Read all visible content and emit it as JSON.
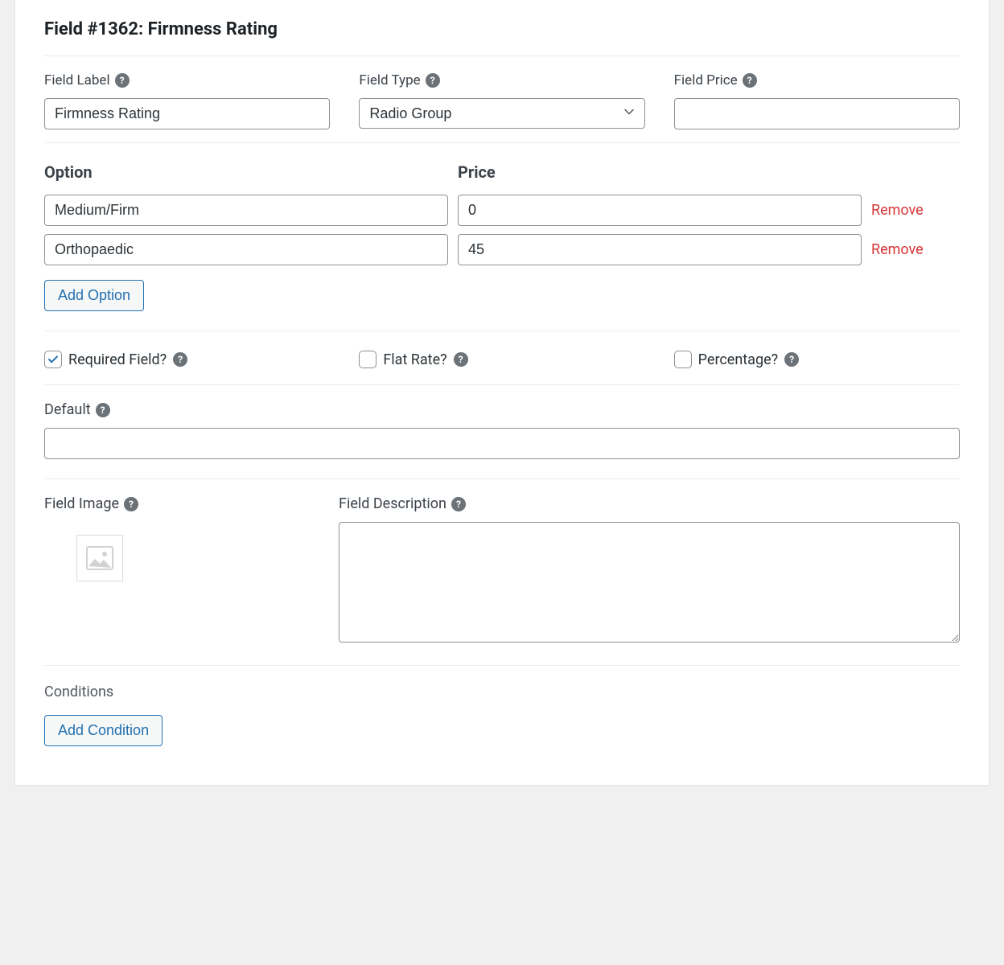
{
  "colors": {
    "body_bg": "#f0f0f1",
    "panel_bg": "#ffffff",
    "border": "#e5e5e5",
    "input_border": "#8c8f94",
    "text": "#1d2327",
    "label": "#3c434a",
    "muted": "#50575e",
    "link_blue": "#2271b1",
    "danger": "#d63638",
    "help_bg": "#6b7278"
  },
  "header": {
    "title": "Field #1362: Firmness Rating"
  },
  "labels": {
    "field_label": "Field Label",
    "field_type": "Field Type",
    "field_price": "Field Price",
    "option": "Option",
    "price": "Price",
    "remove": "Remove",
    "add_option": "Add Option",
    "required": "Required Field?",
    "flat_rate": "Flat Rate?",
    "percentage": "Percentage?",
    "default": "Default",
    "field_image": "Field Image",
    "field_description": "Field Description",
    "conditions": "Conditions",
    "add_condition": "Add Condition"
  },
  "field": {
    "label_value": "Firmness Rating",
    "type_value": "Radio Group",
    "price_value": "",
    "default_value": "",
    "description_value": ""
  },
  "options": [
    {
      "name": "Medium/Firm",
      "price": "0"
    },
    {
      "name": "Orthopaedic",
      "price": "45"
    }
  ],
  "checks": {
    "required": true,
    "flat_rate": false,
    "percentage": false
  }
}
